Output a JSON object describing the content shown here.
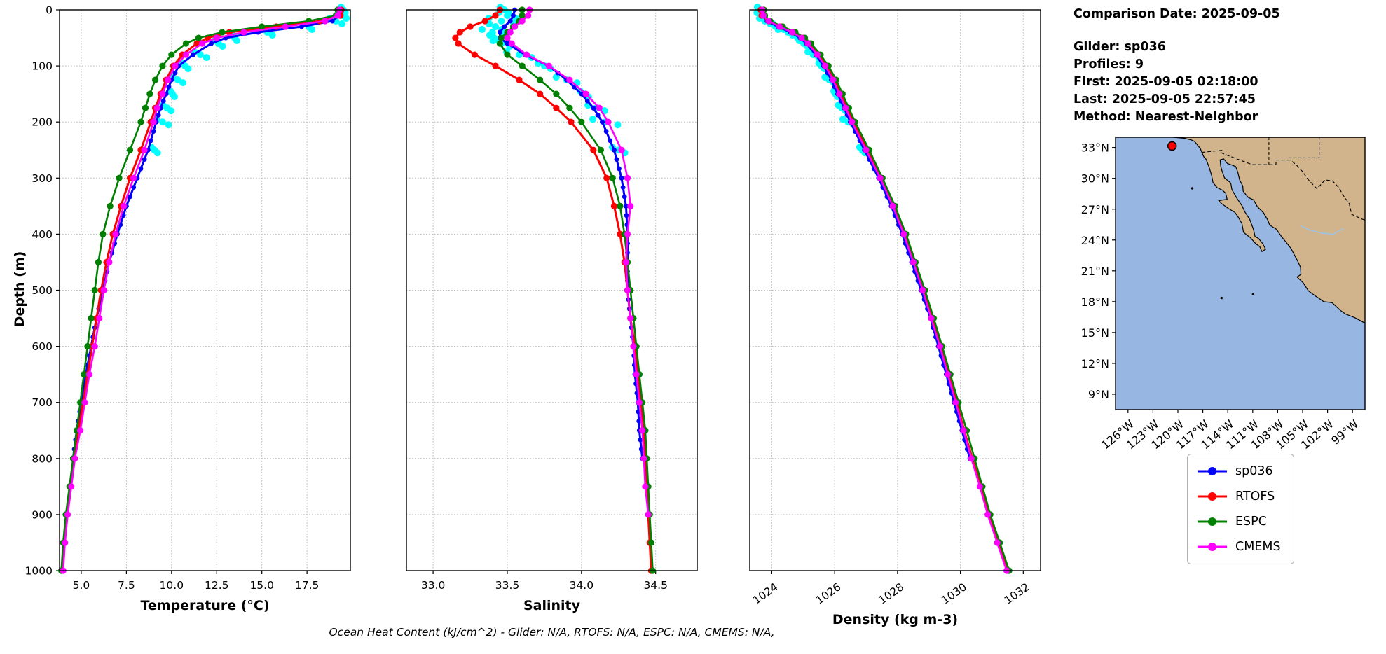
{
  "axes": {
    "ylabel": "Depth (m)"
  },
  "info_panel": {
    "comparison_date": "Comparison Date: 2025-09-05",
    "glider": "Glider: sp036",
    "profiles": "Profiles: 9",
    "first": "First: 2025-09-05 02:18:00",
    "last": "Last: 2025-09-05 22:57:45",
    "method": "Method: Nearest-Neighbor"
  },
  "footer": "Ocean Heat Content (kJ/cm^2) - Glider: N/A,  RTOFS: N/A,  ESPC: N/A,  CMEMS: N/A,",
  "legend": {
    "entries": [
      {
        "label": "sp036",
        "color": "#0000ff"
      },
      {
        "label": "RTOFS",
        "color": "#ff0000"
      },
      {
        "label": "ESPC",
        "color": "#008000"
      },
      {
        "label": "CMEMS",
        "color": "#ff00ff"
      }
    ]
  },
  "map": {
    "ocean_color": "#97b6e1",
    "land_color": "#d2b48c",
    "extent": {
      "lon": [
        -127.5,
        -97.5
      ],
      "lat": [
        7.5,
        34
      ]
    },
    "marker": {
      "name": "glider-position",
      "color": "#ff0000",
      "lon": -120.7,
      "lat": 33.15
    },
    "lat_ticks": [
      {
        "v": 33,
        "label": "33°N"
      },
      {
        "v": 30,
        "label": "30°N"
      },
      {
        "v": 27,
        "label": "27°N"
      },
      {
        "v": 24,
        "label": "24°N"
      },
      {
        "v": 21,
        "label": "21°N"
      },
      {
        "v": 18,
        "label": "18°N"
      },
      {
        "v": 15,
        "label": "15°N"
      },
      {
        "v": 12,
        "label": "12°N"
      },
      {
        "v": 9,
        "label": "9°N"
      }
    ],
    "lon_ticks": [
      {
        "v": -126,
        "label": "126°W"
      },
      {
        "v": -123,
        "label": "123°W"
      },
      {
        "v": -120,
        "label": "120°W"
      },
      {
        "v": -117,
        "label": "117°W"
      },
      {
        "v": -114,
        "label": "114°W"
      },
      {
        "v": -111,
        "label": "111°W"
      },
      {
        "v": -108,
        "label": "108°W"
      },
      {
        "v": -105,
        "label": "105°W"
      },
      {
        "v": -102,
        "label": "102°W"
      },
      {
        "v": -99,
        "label": "99°W"
      }
    ]
  },
  "chart_data": [
    {
      "type": "line",
      "xlabel": "Temperature (°C)",
      "ylabel": "Depth (m)",
      "xlim": [
        3.8,
        19.9
      ],
      "ylim": [
        0,
        1000
      ],
      "grid": true,
      "xlabel_offset": 56,
      "xticks": [
        {
          "v": 5.0,
          "label": "5.0"
        },
        {
          "v": 7.5,
          "label": "7.5"
        },
        {
          "v": 10.0,
          "label": "10.0"
        },
        {
          "v": 12.5,
          "label": "12.5"
        },
        {
          "v": 15.0,
          "label": "15.0"
        },
        {
          "v": 17.5,
          "label": "17.5"
        }
      ],
      "yticks": [
        {
          "v": 0,
          "label": "0"
        },
        {
          "v": 100,
          "label": "100"
        },
        {
          "v": 200,
          "label": "200"
        },
        {
          "v": 300,
          "label": "300"
        },
        {
          "v": 400,
          "label": "400"
        },
        {
          "v": 500,
          "label": "500"
        },
        {
          "v": 600,
          "label": "600"
        },
        {
          "v": 700,
          "label": "700"
        },
        {
          "v": 800,
          "label": "800"
        },
        {
          "v": 900,
          "label": "900"
        },
        {
          "v": 1000,
          "label": "1000"
        }
      ],
      "depths": [
        0,
        10,
        20,
        30,
        40,
        50,
        60,
        80,
        100,
        125,
        150,
        175,
        200,
        250,
        300,
        350,
        400,
        450,
        500,
        550,
        600,
        650,
        700,
        750,
        800,
        850,
        900,
        950,
        1000
      ],
      "series": [
        {
          "name": "glider raw",
          "color": "#00ffff",
          "style": "scatter",
          "spread": 0.28,
          "values": [
            19.5,
            19.45,
            19.1,
            17.6,
            15.3,
            13.5,
            12.6,
            11.6,
            10.75,
            10.35,
            10.05,
            9.75,
            9.5,
            9.05,
            null,
            null,
            null,
            null,
            null,
            null,
            null,
            null,
            null,
            null,
            null,
            null,
            null,
            null,
            null
          ]
        },
        {
          "name": "sp036",
          "color": "#0000ff",
          "dense": true,
          "line_width": 3,
          "values": [
            19.35,
            19.3,
            18.9,
            17.2,
            14.8,
            13.0,
            12.2,
            11.2,
            10.4,
            10.0,
            9.7,
            9.4,
            9.15,
            8.7,
            8.1,
            7.5,
            7.0,
            6.55,
            6.2,
            5.85,
            5.55,
            5.25,
            5.0,
            4.75,
            4.55,
            null,
            null,
            null,
            null
          ]
        },
        {
          "name": "RTOFS",
          "color": "#ff0000",
          "line_width": 3,
          "values": [
            19.4,
            19.35,
            18.2,
            15.8,
            13.2,
            12.0,
            11.4,
            10.6,
            10.1,
            9.7,
            9.4,
            9.1,
            8.85,
            8.3,
            7.7,
            7.2,
            6.75,
            6.4,
            6.1,
            5.85,
            5.6,
            5.35,
            5.1,
            4.85,
            4.6,
            4.4,
            4.2,
            4.05,
            3.95
          ]
        },
        {
          "name": "ESPC",
          "color": "#008000",
          "line_width": 2.6,
          "values": [
            19.2,
            19.1,
            17.6,
            15.0,
            12.8,
            11.5,
            10.8,
            10.0,
            9.5,
            9.1,
            8.8,
            8.55,
            8.3,
            7.7,
            7.1,
            6.6,
            6.2,
            5.95,
            5.75,
            5.55,
            5.35,
            5.15,
            4.95,
            4.75,
            4.55,
            4.35,
            4.15,
            4.0,
            3.9
          ]
        },
        {
          "name": "CMEMS",
          "color": "#ff00ff",
          "line_width": 2.6,
          "values": [
            19.3,
            19.2,
            18.5,
            16.3,
            14.0,
            12.5,
            11.7,
            10.8,
            10.2,
            9.8,
            9.5,
            9.2,
            9.0,
            8.5,
            7.9,
            7.35,
            6.9,
            6.55,
            6.25,
            6.0,
            5.75,
            5.45,
            5.2,
            4.95,
            4.65,
            4.45,
            4.25,
            4.1,
            4.0
          ]
        }
      ]
    },
    {
      "type": "line",
      "xlabel": "Salinity",
      "ylabel": "Depth (m)",
      "xlim": [
        32.82,
        34.78
      ],
      "ylim": [
        0,
        1000
      ],
      "grid": true,
      "xlabel_offset": 56,
      "xticks": [
        {
          "v": 33.0,
          "label": "33.0"
        },
        {
          "v": 33.5,
          "label": "33.5"
        },
        {
          "v": 34.0,
          "label": "34.0"
        },
        {
          "v": 34.5,
          "label": "34.5"
        }
      ],
      "yticks": [
        {
          "v": 0,
          "label": "0"
        },
        {
          "v": 100,
          "label": "100"
        },
        {
          "v": 200,
          "label": "200"
        },
        {
          "v": 300,
          "label": "300"
        },
        {
          "v": 400,
          "label": "400"
        },
        {
          "v": 500,
          "label": "500"
        },
        {
          "v": 600,
          "label": "600"
        },
        {
          "v": 700,
          "label": "700"
        },
        {
          "v": 800,
          "label": "800"
        },
        {
          "v": 900,
          "label": "900"
        },
        {
          "v": 1000,
          "label": "1000"
        }
      ],
      "depths": [
        0,
        10,
        20,
        30,
        40,
        50,
        60,
        80,
        100,
        125,
        150,
        175,
        200,
        250,
        300,
        350,
        400,
        450,
        500,
        550,
        600,
        650,
        700,
        750,
        800,
        850,
        900,
        950,
        1000
      ],
      "series": [
        {
          "name": "glider raw",
          "color": "#00ffff",
          "style": "scatter",
          "spread": 0.07,
          "values": [
            33.48,
            33.5,
            33.46,
            33.42,
            33.4,
            33.41,
            33.46,
            33.58,
            33.75,
            33.9,
            34.02,
            34.1,
            34.16,
            34.25,
            null,
            null,
            null,
            null,
            null,
            null,
            null,
            null,
            null,
            null,
            null,
            null,
            null,
            null,
            null
          ]
        },
        {
          "name": "sp036",
          "color": "#0000ff",
          "dense": true,
          "line_width": 3,
          "values": [
            33.55,
            33.54,
            33.52,
            33.48,
            33.45,
            33.45,
            33.5,
            33.62,
            33.78,
            33.9,
            34.0,
            34.08,
            34.14,
            34.22,
            34.27,
            34.3,
            34.31,
            34.31,
            34.31,
            34.33,
            34.35,
            34.36,
            34.38,
            34.39,
            34.41,
            null,
            null,
            null,
            null
          ]
        },
        {
          "name": "RTOFS",
          "color": "#ff0000",
          "line_width": 3,
          "values": [
            33.45,
            33.42,
            33.35,
            33.25,
            33.18,
            33.15,
            33.17,
            33.28,
            33.42,
            33.58,
            33.72,
            33.83,
            33.93,
            34.08,
            34.17,
            34.22,
            34.26,
            34.29,
            34.31,
            34.33,
            34.36,
            34.38,
            34.4,
            34.42,
            34.43,
            34.44,
            34.45,
            34.46,
            34.47
          ]
        },
        {
          "name": "ESPC",
          "color": "#008000",
          "line_width": 2.6,
          "values": [
            33.6,
            33.6,
            33.58,
            33.54,
            33.5,
            33.46,
            33.45,
            33.5,
            33.6,
            33.72,
            33.83,
            33.92,
            34.0,
            34.13,
            34.21,
            34.26,
            34.29,
            34.31,
            34.33,
            34.35,
            34.37,
            34.39,
            34.41,
            34.43,
            34.44,
            34.45,
            34.46,
            34.47,
            34.48
          ]
        },
        {
          "name": "CMEMS",
          "color": "#ff00ff",
          "line_width": 2.6,
          "values": [
            33.65,
            33.64,
            33.6,
            33.55,
            33.52,
            33.5,
            33.53,
            33.63,
            33.78,
            33.92,
            34.03,
            34.12,
            34.18,
            34.27,
            34.31,
            34.33,
            34.31,
            34.3,
            34.31,
            34.33,
            34.35,
            34.37,
            34.39,
            34.41,
            34.42,
            34.43,
            34.45,
            null,
            null
          ]
        }
      ]
    },
    {
      "type": "line",
      "xlabel": "Density (kg m-3)",
      "ylabel": "Depth (m)",
      "xlim": [
        1023.3,
        1032.55
      ],
      "ylim": [
        0,
        1000
      ],
      "grid": true,
      "rotate_xticklabels": true,
      "xlabel_offset": 76,
      "xticks": [
        {
          "v": 1024,
          "label": "1024"
        },
        {
          "v": 1026,
          "label": "1026"
        },
        {
          "v": 1028,
          "label": "1028"
        },
        {
          "v": 1030,
          "label": "1030"
        },
        {
          "v": 1032,
          "label": "1032"
        }
      ],
      "yticks": [
        {
          "v": 0,
          "label": "0"
        },
        {
          "v": 100,
          "label": "100"
        },
        {
          "v": 200,
          "label": "200"
        },
        {
          "v": 300,
          "label": "300"
        },
        {
          "v": 400,
          "label": "400"
        },
        {
          "v": 500,
          "label": "500"
        },
        {
          "v": 600,
          "label": "600"
        },
        {
          "v": 700,
          "label": "700"
        },
        {
          "v": 800,
          "label": "800"
        },
        {
          "v": 900,
          "label": "900"
        },
        {
          "v": 1000,
          "label": "1000"
        }
      ],
      "depths": [
        0,
        10,
        20,
        30,
        40,
        50,
        60,
        80,
        100,
        125,
        150,
        175,
        200,
        250,
        300,
        350,
        400,
        450,
        500,
        550,
        600,
        650,
        700,
        750,
        800,
        850,
        900,
        950,
        1000
      ],
      "series": [
        {
          "name": "glider raw",
          "color": "#00ffff",
          "style": "scatter",
          "spread": 0.14,
          "values": [
            1023.6,
            1023.64,
            1023.78,
            1024.12,
            1024.52,
            1024.82,
            1025.02,
            1025.32,
            1025.58,
            1025.83,
            1026.03,
            1026.23,
            1026.43,
            1026.88,
            null,
            null,
            null,
            null,
            null,
            null,
            null,
            null,
            null,
            null,
            null,
            null,
            null,
            null,
            null
          ]
        },
        {
          "name": "sp036",
          "color": "#0000ff",
          "dense": true,
          "line_width": 3,
          "values": [
            1023.7,
            1023.72,
            1023.85,
            1024.2,
            1024.6,
            1024.9,
            1025.1,
            1025.4,
            1025.65,
            1025.9,
            1026.1,
            1026.3,
            1026.5,
            1026.95,
            1027.4,
            1027.8,
            1028.15,
            1028.45,
            1028.75,
            1029.05,
            1029.3,
            1029.55,
            1029.8,
            1030.05,
            1030.3,
            null,
            null,
            null,
            null
          ]
        },
        {
          "name": "RTOFS",
          "color": "#ff0000",
          "line_width": 3,
          "values": [
            1023.65,
            1023.68,
            1023.9,
            1024.3,
            1024.7,
            1025.0,
            1025.2,
            1025.5,
            1025.75,
            1026.0,
            1026.2,
            1026.4,
            1026.6,
            1027.05,
            1027.5,
            1027.9,
            1028.25,
            1028.55,
            1028.85,
            1029.1,
            1029.38,
            1029.62,
            1029.88,
            1030.12,
            1030.38,
            1030.65,
            1030.9,
            1031.2,
            1031.5
          ]
        },
        {
          "name": "ESPC",
          "color": "#008000",
          "line_width": 2.6,
          "values": [
            1023.75,
            1023.78,
            1023.95,
            1024.35,
            1024.75,
            1025.05,
            1025.25,
            1025.55,
            1025.8,
            1026.05,
            1026.25,
            1026.45,
            1026.65,
            1027.1,
            1027.52,
            1027.92,
            1028.27,
            1028.57,
            1028.87,
            1029.15,
            1029.42,
            1029.68,
            1029.94,
            1030.2,
            1030.45,
            1030.7,
            1030.95,
            1031.25,
            1031.55
          ]
        },
        {
          "name": "CMEMS",
          "color": "#ff00ff",
          "line_width": 2.6,
          "values": [
            1023.7,
            1023.73,
            1023.9,
            1024.25,
            1024.65,
            1024.95,
            1025.15,
            1025.45,
            1025.7,
            1025.95,
            1026.15,
            1026.35,
            1026.55,
            1027.0,
            1027.45,
            1027.85,
            1028.2,
            1028.5,
            1028.8,
            1029.07,
            1029.35,
            1029.6,
            1029.85,
            1030.1,
            1030.35,
            1030.62,
            1030.87,
            1031.17,
            1031.47
          ]
        }
      ]
    }
  ]
}
